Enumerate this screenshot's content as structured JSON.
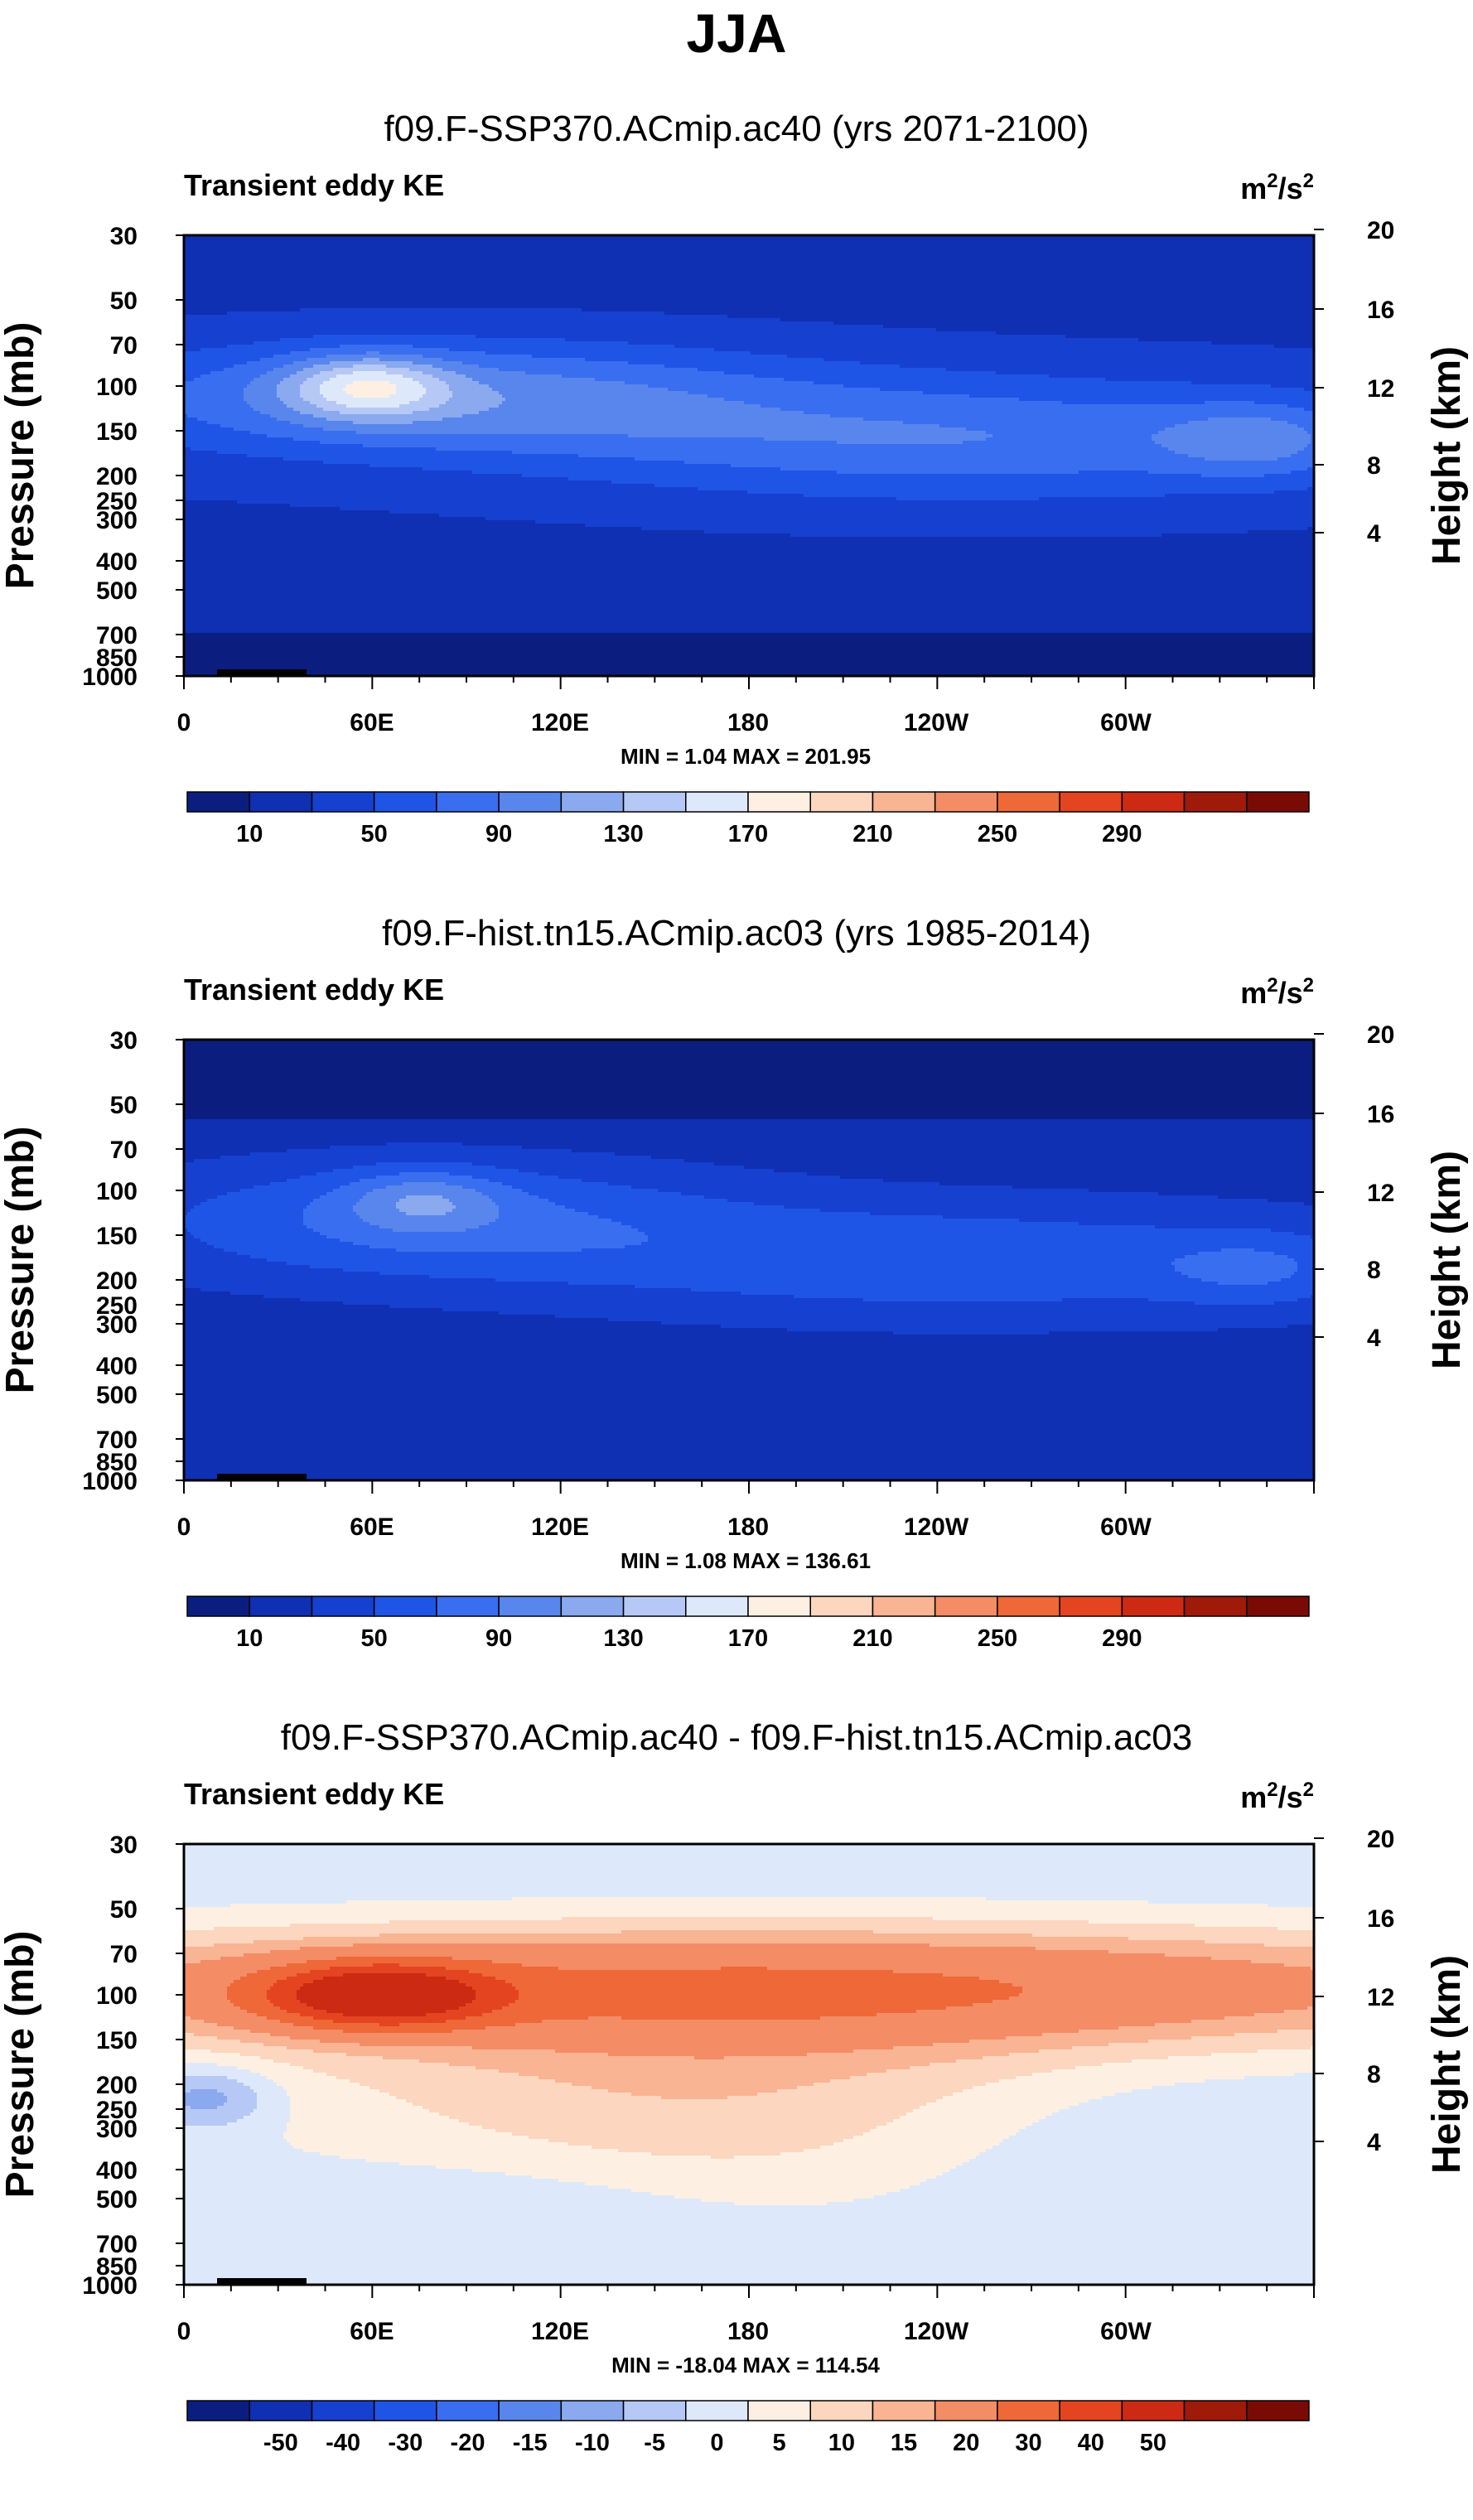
{
  "title": "JJA",
  "colors": {
    "seq": [
      "#0b1e80",
      "#0f30b2",
      "#1640cf",
      "#1f55e6",
      "#3a6ef0",
      "#5886ec",
      "#8aa9ef",
      "#b6c8f5",
      "#dde9fa",
      "#fdf0e3",
      "#fcd6be",
      "#f9b493",
      "#f48c66",
      "#ee6838",
      "#e54420",
      "#cc2a12",
      "#a01a0a",
      "#7a0b04"
    ],
    "diff": [
      "#0b1e80",
      "#0f30b2",
      "#1640cf",
      "#1f55e6",
      "#3a6ef0",
      "#5886ec",
      "#8aa9ef",
      "#b6c8f5",
      "#dde9fa",
      "#fdf0e3",
      "#fcd6be",
      "#f9b493",
      "#f48c66",
      "#ee6838",
      "#e54420",
      "#cc2a12",
      "#a01a0a",
      "#7a0b04"
    ],
    "topo": "#000000"
  },
  "chart_data": [
    {
      "type": "heatmap",
      "id": "future",
      "title": "f09.F-SSP370.ACmip.ac40 (yrs 2071-2100)",
      "left_label": "Transient eddy KE",
      "units_base": "m",
      "units_exp1": "2",
      "units_mid": "/s",
      "units_exp2": "2",
      "ylabel": "Pressure (mb)",
      "ylabel_right": "Height (km)",
      "pressure_ticks": [
        "30",
        "50",
        "70",
        "100",
        "150",
        "200",
        "250",
        "300",
        "400",
        "500",
        "700",
        "850",
        "1000"
      ],
      "height_ticks": [
        "20",
        "16",
        "12",
        "8",
        "4"
      ],
      "lon_ticks": [
        "0",
        "60E",
        "120E",
        "180",
        "120W",
        "60W"
      ],
      "min_label": "MIN =",
      "min_value": "1.04",
      "max_label": "MAX =",
      "max_value": "201.95",
      "colorbar_labels": [
        "10",
        "50",
        "90",
        "130",
        "170",
        "210",
        "250",
        "290"
      ],
      "contour_levels": [
        10,
        30,
        50,
        70,
        90,
        110,
        130,
        150,
        170,
        190,
        210,
        230,
        250,
        270,
        290
      ],
      "palette": "seq",
      "lat_feature_max": 201.95
    },
    {
      "type": "heatmap",
      "id": "historical",
      "title": "f09.F-hist.tn15.ACmip.ac03 (yrs 1985-2014)",
      "left_label": "Transient eddy KE",
      "units_base": "m",
      "units_exp1": "2",
      "units_mid": "/s",
      "units_exp2": "2",
      "ylabel": "Pressure (mb)",
      "ylabel_right": "Height (km)",
      "pressure_ticks": [
        "30",
        "50",
        "70",
        "100",
        "150",
        "200",
        "250",
        "300",
        "400",
        "500",
        "700",
        "850",
        "1000"
      ],
      "height_ticks": [
        "20",
        "16",
        "12",
        "8",
        "4"
      ],
      "lon_ticks": [
        "0",
        "60E",
        "120E",
        "180",
        "120W",
        "60W"
      ],
      "min_label": "MIN =",
      "min_value": "1.08",
      "max_label": "MAX =",
      "max_value": "136.61",
      "colorbar_labels": [
        "10",
        "50",
        "90",
        "130",
        "170",
        "210",
        "250",
        "290"
      ],
      "contour_levels": [
        10,
        30,
        50,
        70,
        90,
        110,
        130,
        150,
        170,
        190,
        210,
        230,
        250,
        270,
        290
      ],
      "palette": "seq",
      "lat_feature_max": 136.61
    },
    {
      "type": "heatmap",
      "id": "difference",
      "title": "f09.F-SSP370.ACmip.ac40 - f09.F-hist.tn15.ACmip.ac03",
      "left_label": "Transient eddy KE",
      "units_base": "m",
      "units_exp1": "2",
      "units_mid": "/s",
      "units_exp2": "2",
      "ylabel": "Pressure (mb)",
      "ylabel_right": "Height (km)",
      "pressure_ticks": [
        "30",
        "50",
        "70",
        "100",
        "150",
        "200",
        "250",
        "300",
        "400",
        "500",
        "700",
        "850",
        "1000"
      ],
      "height_ticks": [
        "20",
        "16",
        "12",
        "8",
        "4"
      ],
      "lon_ticks": [
        "0",
        "60E",
        "120E",
        "180",
        "120W",
        "60W"
      ],
      "min_label": "MIN =",
      "min_value": "-18.04",
      "max_label": "MAX =",
      "max_value": "114.54",
      "colorbar_labels": [
        "-50",
        "-40",
        "-30",
        "-20",
        "-15",
        "-10",
        "-5",
        "0",
        "5",
        "10",
        "15",
        "20",
        "30",
        "40",
        "50"
      ],
      "contour_levels": [
        -50,
        -40,
        -30,
        -20,
        -15,
        -10,
        -5,
        0,
        5,
        10,
        15,
        20,
        30,
        40,
        50
      ],
      "palette": "diff",
      "lat_feature_max": 114.54
    }
  ]
}
